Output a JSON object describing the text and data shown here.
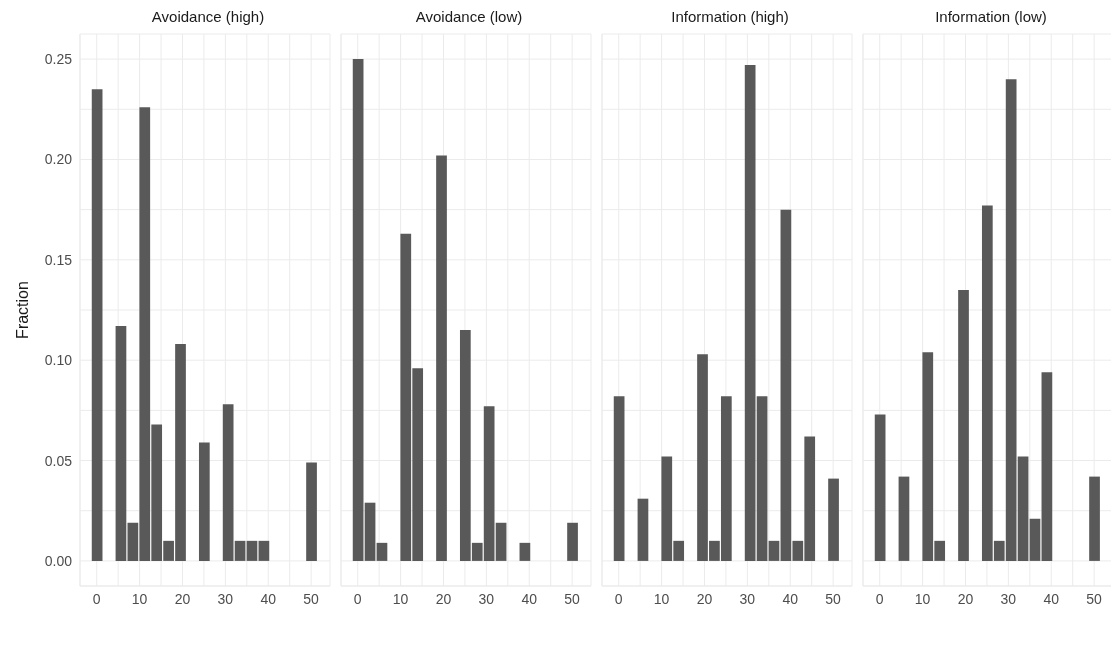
{
  "chart_data": [
    {
      "type": "histogram",
      "title": "Avoidance (high)",
      "ylabel": "Fraction",
      "color": "#595959",
      "grid": true,
      "bins": [
        -1.389,
        1.389,
        4.167,
        6.944,
        9.722,
        12.5,
        15.278,
        18.056,
        20.833,
        23.611,
        26.389,
        29.167,
        31.944,
        34.722,
        37.5,
        40.278,
        43.056,
        45.833,
        48.611,
        51.389
      ],
      "values": [
        0.235,
        0,
        0.117,
        0.019,
        0.226,
        0.068,
        0.01,
        0.108,
        0,
        0.059,
        0,
        0.078,
        0.01,
        0.01,
        0.01,
        0,
        0,
        0,
        0.049
      ],
      "xlim": [
        -3.9,
        54.4
      ],
      "xticks": [
        0,
        {
          "value": 5,
          "label": null
        },
        10,
        {
          "value": 15,
          "label": null
        },
        20,
        {
          "value": 25,
          "label": null
        },
        30,
        {
          "value": 35,
          "label": null
        },
        40,
        {
          "value": 45,
          "label": null
        },
        50
      ],
      "ylim": [
        -0.0125,
        0.2625
      ],
      "yticks": [
        "0.00",
        {
          "value": 0.025,
          "label": null
        },
        {
          "value": 0.05,
          "label": "0.05"
        },
        {
          "value": 0.075,
          "label": null
        },
        {
          "value": 0.1,
          "label": "0.10"
        },
        {
          "value": 0.125,
          "label": null
        },
        {
          "value": 0.15,
          "label": "0.15"
        },
        {
          "value": 0.175,
          "label": null
        },
        {
          "value": 0.2,
          "label": "0.20"
        },
        {
          "value": 0.225,
          "label": null
        },
        {
          "value": 0.25,
          "label": "0.25"
        }
      ]
    },
    {
      "type": "histogram",
      "title": "Avoidance (low)",
      "color": "#595959",
      "grid": true,
      "tick_labels": "x",
      "bins": [
        -1.389,
        1.389,
        4.167,
        6.944,
        9.722,
        12.5,
        15.278,
        18.056,
        20.833,
        23.611,
        26.389,
        29.167,
        31.944,
        34.722,
        37.5,
        40.278,
        43.056,
        45.833,
        48.611,
        51.389
      ],
      "values": [
        0.25,
        0.029,
        0.009,
        0,
        0.163,
        0.096,
        0,
        0.202,
        0,
        0.115,
        0.009,
        0.077,
        0.019,
        0,
        0.009,
        0,
        0,
        0,
        0.019
      ],
      "xlim": [
        -3.9,
        54.4
      ],
      "xticks": [
        0,
        {
          "value": 5,
          "label": null
        },
        10,
        {
          "value": 15,
          "label": null
        },
        20,
        {
          "value": 25,
          "label": null
        },
        30,
        {
          "value": 35,
          "label": null
        },
        40,
        {
          "value": 45,
          "label": null
        },
        50
      ],
      "ylim": [
        -0.0125,
        0.2625
      ],
      "yticks": [
        {
          "value": 0,
          "label": null
        },
        {
          "value": 0.025,
          "label": null
        },
        {
          "value": 0.05,
          "label": null
        },
        {
          "value": 0.075,
          "label": null
        },
        {
          "value": 0.1,
          "label": null
        },
        {
          "value": 0.125,
          "label": null
        },
        {
          "value": 0.15,
          "label": null
        },
        {
          "value": 0.175,
          "label": null
        },
        {
          "value": 0.2,
          "label": null
        },
        {
          "value": 0.225,
          "label": null
        },
        {
          "value": 0.25,
          "label": null
        }
      ]
    },
    {
      "type": "histogram",
      "title": "Information (high)",
      "color": "#595959",
      "grid": true,
      "tick_labels": "x",
      "bins": [
        -1.389,
        1.389,
        4.167,
        6.944,
        9.722,
        12.5,
        15.278,
        18.056,
        20.833,
        23.611,
        26.389,
        29.167,
        31.944,
        34.722,
        37.5,
        40.278,
        43.056,
        45.833,
        48.611,
        51.389
      ],
      "values": [
        0.082,
        0,
        0.031,
        0,
        0.052,
        0.01,
        0,
        0.103,
        0.01,
        0.082,
        0,
        0.247,
        0.082,
        0.01,
        0.175,
        0.01,
        0.062,
        0,
        0.041
      ],
      "xlim": [
        -3.9,
        54.4
      ],
      "xticks": [
        0,
        {
          "value": 5,
          "label": null
        },
        10,
        {
          "value": 15,
          "label": null
        },
        20,
        {
          "value": 25,
          "label": null
        },
        30,
        {
          "value": 35,
          "label": null
        },
        40,
        {
          "value": 45,
          "label": null
        },
        50
      ],
      "ylim": [
        -0.0125,
        0.2625
      ],
      "yticks": [
        {
          "value": 0,
          "label": null
        },
        {
          "value": 0.025,
          "label": null
        },
        {
          "value": 0.05,
          "label": null
        },
        {
          "value": 0.075,
          "label": null
        },
        {
          "value": 0.1,
          "label": null
        },
        {
          "value": 0.125,
          "label": null
        },
        {
          "value": 0.15,
          "label": null
        },
        {
          "value": 0.175,
          "label": null
        },
        {
          "value": 0.2,
          "label": null
        },
        {
          "value": 0.225,
          "label": null
        },
        {
          "value": 0.25,
          "label": null
        }
      ]
    },
    {
      "type": "histogram",
      "title": "Information (low)",
      "color": "#595959",
      "grid": true,
      "tick_labels": "x",
      "bins": [
        -1.389,
        1.389,
        4.167,
        6.944,
        9.722,
        12.5,
        15.278,
        18.056,
        20.833,
        23.611,
        26.389,
        29.167,
        31.944,
        34.722,
        37.5,
        40.278,
        43.056,
        45.833,
        48.611,
        51.389
      ],
      "values": [
        0.073,
        0,
        0.042,
        0,
        0.104,
        0.01,
        0,
        0.135,
        0,
        0.177,
        0.01,
        0.24,
        0.052,
        0.021,
        0.094,
        0,
        0,
        0,
        0.042
      ],
      "xlim": [
        -3.9,
        54.4
      ],
      "xticks": [
        0,
        {
          "value": 5,
          "label": null
        },
        10,
        {
          "value": 15,
          "label": null
        },
        20,
        {
          "value": 25,
          "label": null
        },
        30,
        {
          "value": 35,
          "label": null
        },
        40,
        {
          "value": 45,
          "label": null
        },
        50
      ],
      "ylim": [
        -0.0125,
        0.2625
      ],
      "yticks": [
        {
          "value": 0,
          "label": null
        },
        {
          "value": 0.025,
          "label": null
        },
        {
          "value": 0.05,
          "label": null
        },
        {
          "value": 0.075,
          "label": null
        },
        {
          "value": 0.1,
          "label": null
        },
        {
          "value": 0.125,
          "label": null
        },
        {
          "value": 0.15,
          "label": null
        },
        {
          "value": 0.175,
          "label": null
        },
        {
          "value": 0.2,
          "label": null
        },
        {
          "value": 0.225,
          "label": null
        },
        {
          "value": 0.25,
          "label": null
        }
      ]
    }
  ]
}
